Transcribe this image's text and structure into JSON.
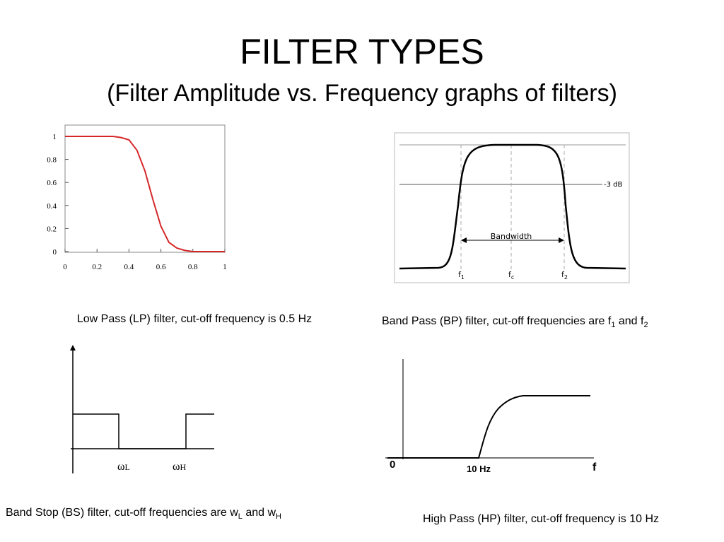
{
  "title": "FILTER TYPES",
  "subtitle": "(Filter Amplitude vs. Frequency graphs of filters)",
  "low_pass": {
    "caption": "Low Pass (LP) filter, cut-off frequency is 0.5 Hz",
    "xlim": [
      0,
      1
    ],
    "ylim": [
      0,
      1
    ],
    "xticks": [
      0,
      0.2,
      0.4,
      0.6,
      0.8,
      1
    ],
    "yticks": [
      0,
      0.2,
      0.4,
      0.6,
      0.8,
      1
    ],
    "color": "#d62728",
    "x": [
      0,
      0.1,
      0.2,
      0.3,
      0.35,
      0.4,
      0.45,
      0.5,
      0.55,
      0.6,
      0.65,
      0.7,
      0.75,
      0.8,
      0.9,
      1
    ],
    "values": [
      1,
      1,
      1,
      1,
      0.99,
      0.97,
      0.88,
      0.7,
      0.45,
      0.22,
      0.08,
      0.03,
      0.01,
      0,
      0,
      0
    ]
  },
  "band_pass": {
    "level_label": "-3 dB",
    "bandwidth_label": "Bandwidth",
    "f1": {
      "base": "f",
      "sub": "1"
    },
    "fc": {
      "base": "f",
      "sub": "c"
    },
    "f2": {
      "base": "f",
      "sub": "2"
    },
    "caption": {
      "text": "Band Pass (BP) filter, cut-off frequencies are f",
      "sub1": "1",
      "mid": " and f",
      "sub2": "2"
    }
  },
  "band_stop": {
    "omega_l": {
      "base": "ω",
      "sub": "L"
    },
    "omega_h": {
      "base": "ω",
      "sub": "H"
    },
    "caption": {
      "text": "Band Stop (BS) filter, cut-off frequencies are w",
      "sub1": "L",
      "mid": " and w",
      "sub2": "H"
    }
  },
  "high_pass": {
    "origin_label": "0",
    "cutoff_label": "10 Hz",
    "axis_label": "f",
    "caption": "High Pass (HP) filter, cut-off frequency is 10 Hz"
  }
}
